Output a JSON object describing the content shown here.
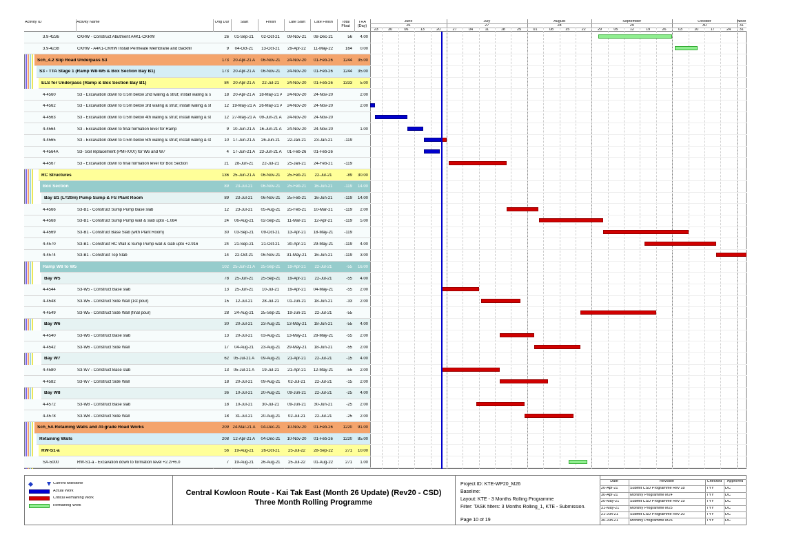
{
  "header": {
    "columns": [
      "Activity ID",
      "Activity Name",
      "Orig Dur",
      "Start",
      "Finish",
      "Late Start",
      "Late Finish",
      "Total Float",
      "TRA (Day)"
    ]
  },
  "timescale": {
    "months": [
      {
        "name": "June",
        "num": "26"
      },
      {
        "name": "July",
        "num": "27"
      },
      {
        "name": "August",
        "num": "28"
      },
      {
        "name": "September",
        "num": "29"
      },
      {
        "name": "October",
        "num": "30"
      },
      {
        "name": "Nove",
        "num": "31"
      }
    ],
    "weeks": [
      "23",
      "30",
      "06",
      "13",
      "20",
      "27",
      "04",
      "11",
      "18",
      "25",
      "01",
      "08",
      "15",
      "22",
      "29",
      "05",
      "12",
      "19",
      "26",
      "03",
      "10",
      "17",
      "24",
      "31"
    ]
  },
  "rows": [
    {
      "id": "3.9-4236",
      "name": "CKRW - Construct Abutment A4K1-CKRW",
      "dur": 26,
      "start": "01-Sep-21",
      "finish": "02-Oct-21",
      "late_start": "09-Nov-21",
      "late_finish": "08-Dec-21",
      "float": 56,
      "tra": "4.00"
    },
    {
      "id": "3.9-4238",
      "name": "CKRW - A4K1-CKRW Install Permeate Membrane and Backfill",
      "dur": 9,
      "start": "04-Oct-21",
      "finish": "13-Oct-21",
      "late_start": "29-Apr-22",
      "late_finish": "11-May-22",
      "float": 164,
      "tra": "0.00"
    },
    {
      "name": "Sch_4.2 Slip Road Underpass S3",
      "dur": 173,
      "start": "20-Apr-21 A",
      "finish": "06-Nov-21",
      "late_start": "24-Nov-20",
      "late_finish": "01-Feb-26",
      "float": 1244,
      "tra": "35.00"
    },
    {
      "name": "S3 - TTA Stage 1 (Ramp W8-W5 & Box Section Bay B1)",
      "dur": 173,
      "start": "20-Apr-21 A",
      "finish": "06-Nov-21",
      "late_start": "24-Nov-20",
      "late_finish": "01-Feb-26",
      "float": 1244,
      "tra": "35.00"
    },
    {
      "name": "ELS for Underpass (Ramp & Box Section Bay B1)",
      "dur": 84,
      "start": "20-Apr-21 A",
      "finish": "22-Jul-21",
      "late_start": "24-Nov-20",
      "late_finish": "01-Feb-26",
      "float": 1333,
      "tra": "5.00"
    },
    {
      "id": "4-4560",
      "name": "S3 - Excavation down to 0.5m below 2nd waling & strut; install waling & strut",
      "dur": 18,
      "start": "20-Apr-21 A",
      "finish": "18-May-21 A",
      "late_start": "24-Nov-20",
      "late_finish": "24-Nov-20",
      "tra": "2.00"
    },
    {
      "id": "4-4562",
      "name": "S3 - Excavation down to 0.5m below 3rd waling & strut; install waling & strut",
      "dur": 12,
      "start": "19-May-21 A",
      "finish": "26-May-21 A",
      "late_start": "24-Nov-20",
      "late_finish": "24-Nov-20",
      "tra": "2.00"
    },
    {
      "id": "4-4563",
      "name": "S3 - Excavation down to 0.5m below 4th waling & strut; install waling & strut",
      "dur": 12,
      "start": "27-May-21 A",
      "finish": "09-Jun-21 A",
      "late_start": "24-Nov-20",
      "late_finish": "24-Nov-20"
    },
    {
      "id": "4-4564",
      "name": "S3 - Excavation down to final formation level for Ramp",
      "dur": 9,
      "start": "10-Jun-21 A",
      "finish": "16-Jun-21 A",
      "late_start": "24-Nov-20",
      "late_finish": "24-Nov-20",
      "tra": "1.00"
    },
    {
      "id": "4-4565",
      "name": "S3 - Excavation down to 0.5m below 5th waling & strut; install waling & strut",
      "dur": 10,
      "start": "17-Jun-21 A",
      "finish": "26-Jun-21",
      "late_start": "22-Jan-21",
      "late_finish": "23-Jan-21",
      "float": -119
    },
    {
      "id": "4-4564A",
      "name": "S3- Soil replacement (PMI-XXX) for W6 and W7",
      "dur": 4,
      "start": "17-Jun-21 A",
      "finish": "23-Jun-21 A",
      "late_start": "01-Feb-26",
      "late_finish": "01-Feb-26"
    },
    {
      "id": "4-4567",
      "name": "S3 - Excavation down to final formation level for Box Section",
      "dur": 21,
      "start": "28-Jun-21",
      "finish": "22-Jul-21",
      "late_start": "25-Jan-21",
      "late_finish": "24-Feb-21",
      "float": -119
    },
    {
      "name": "RC Structures",
      "dur": 136,
      "start": "25-Jun-21 A",
      "finish": "06-Nov-21",
      "late_start": "25-Feb-21",
      "late_finish": "22-Jul-21",
      "float": -89,
      "tra": "30.00"
    },
    {
      "name": "Box Section",
      "dur": 89,
      "start": "23-Jul-21",
      "finish": "06-Nov-21",
      "late_start": "25-Feb-21",
      "late_finish": "16-Jun-21",
      "float": -119,
      "tra": "14.00"
    },
    {
      "name": "Bay B1 (L=20m) Pump Sump & FS Plant Room",
      "dur": 89,
      "start": "23-Jul-21",
      "finish": "06-Nov-21",
      "late_start": "25-Feb-21",
      "late_finish": "16-Jun-21",
      "float": -119,
      "tra": "14.00"
    },
    {
      "id": "4-4566",
      "name": "S3-B1 - Construct Sump Pump Base slab",
      "dur": 12,
      "start": "23-Jul-21",
      "finish": "05-Aug-21",
      "late_start": "25-Feb-21",
      "late_finish": "10-Mar-21",
      "float": -119,
      "tra": "2.00"
    },
    {
      "id": "4-4568",
      "name": "S3-B1 - Construct Sump Pump wall & slab upto -1.084",
      "dur": 24,
      "start": "06-Aug-21",
      "finish": "02-Sep-21",
      "late_start": "11-Mar-21",
      "late_finish": "12-Apr-21",
      "float": -119,
      "tra": "5.00"
    },
    {
      "id": "4-4569",
      "name": "S3-B1 - Construct Base Slab (with Plant Room)",
      "dur": 30,
      "start": "03-Sep-21",
      "finish": "09-Oct-21",
      "late_start": "13-Apr-21",
      "late_finish": "18-May-21",
      "float": -119
    },
    {
      "id": "4-4570",
      "name": "S3-B1 - Construct RC Wall & Sump Pump wall & slab upto +2.916",
      "dur": 24,
      "start": "21-Sep-21",
      "finish": "21-Oct-21",
      "late_start": "30-Apr-21",
      "late_finish": "29-May-21",
      "float": -119,
      "tra": "4.00"
    },
    {
      "id": "4-4574",
      "name": "S3-B1 - Construct Top Slab",
      "dur": 14,
      "start": "22-Oct-21",
      "finish": "06-Nov-21",
      "late_start": "31-May-21",
      "late_finish": "16-Jun-21",
      "float": -119,
      "tra": "3.00"
    },
    {
      "name": "Ramp W8 to W5",
      "dur": 102,
      "start": "25-Jun-21 A",
      "finish": "25-Sep-21",
      "late_start": "19-Apr-21",
      "late_finish": "22-Jul-21",
      "float": -55,
      "tra": "16.00"
    },
    {
      "name": "Bay W5",
      "dur": 78,
      "start": "25-Jun-21",
      "finish": "25-Sep-21",
      "late_start": "19-Apr-21",
      "late_finish": "22-Jul-21",
      "float": -55,
      "tra": "4.00"
    },
    {
      "id": "4-4544",
      "name": "S3-W5 - Construct Base slab",
      "dur": 13,
      "start": "25-Jun-21",
      "finish": "10-Jul-21",
      "late_start": "19-Apr-21",
      "late_finish": "04-May-21",
      "float": -55,
      "tra": "2.00"
    },
    {
      "id": "4-4548",
      "name": "S3-W5 - Construct Side Wall (1st pour)",
      "dur": 15,
      "start": "12-Jul-21",
      "finish": "28-Jul-21",
      "late_start": "01-Jun-21",
      "late_finish": "18-Jun-21",
      "float": -33,
      "tra": "2.00"
    },
    {
      "id": "4-4549",
      "name": "S3-W5 - Construct Side Wall (final pour)",
      "dur": 28,
      "start": "24-Aug-21",
      "finish": "25-Sep-21",
      "late_start": "19-Jun-21",
      "late_finish": "22-Jul-21",
      "float": -55
    },
    {
      "name": "Bay W6",
      "dur": 30,
      "start": "20-Jul-21",
      "finish": "23-Aug-21",
      "late_start": "13-May-21",
      "late_finish": "18-Jun-21",
      "float": -55,
      "tra": "4.00"
    },
    {
      "id": "4-4540",
      "name": "S3-W6 - Construct Base slab",
      "dur": 13,
      "start": "20-Jul-21",
      "finish": "03-Aug-21",
      "late_start": "13-May-21",
      "late_finish": "28-May-21",
      "float": -55,
      "tra": "2.00"
    },
    {
      "id": "4-4542",
      "name": "S3-W6 - Construct Side Wall",
      "dur": 17,
      "start": "04-Aug-21",
      "finish": "23-Aug-21",
      "late_start": "29-May-21",
      "late_finish": "18-Jun-21",
      "float": -55,
      "tra": "2.00"
    },
    {
      "name": "Bay W7",
      "dur": 62,
      "start": "05-Jul-21 A",
      "finish": "09-Aug-21",
      "late_start": "21-Apr-21",
      "late_finish": "22-Jul-21",
      "float": -15,
      "tra": "4.00"
    },
    {
      "id": "4-4580",
      "name": "S3-W7 - Construct Base slab",
      "dur": 13,
      "start": "05-Jul-21 A",
      "finish": "19-Jul-21",
      "late_start": "21-Apr-21",
      "late_finish": "12-May-21",
      "float": -55,
      "tra": "2.00"
    },
    {
      "id": "4-4582",
      "name": "S3-W7 - Construct Side Wall",
      "dur": 18,
      "start": "20-Jul-21",
      "finish": "09-Aug-21",
      "late_start": "02-Jul-21",
      "late_finish": "22-Jul-21",
      "float": -15,
      "tra": "2.00"
    },
    {
      "name": "Bay W8",
      "dur": 36,
      "start": "10-Jul-21",
      "finish": "20-Aug-21",
      "late_start": "09-Jun-21",
      "late_finish": "22-Jul-21",
      "float": -25,
      "tra": "4.00"
    },
    {
      "id": "4-4572",
      "name": "S3-W8 - Construct Base slab",
      "dur": 18,
      "start": "10-Jul-21",
      "finish": "30-Jul-21",
      "late_start": "09-Jun-21",
      "late_finish": "30-Jun-21",
      "float": -25,
      "tra": "2.00"
    },
    {
      "id": "4-4578",
      "name": "S3-W8 - Construct Side Wall",
      "dur": 18,
      "start": "31-Jul-21",
      "finish": "20-Aug-21",
      "late_start": "02-Jul-21",
      "late_finish": "22-Jul-21",
      "float": -25,
      "tra": "2.00"
    },
    {
      "name": "Sch_5A Retaining Walls and At-grade Road Works",
      "dur": 209,
      "start": "24-Mar-21 A",
      "finish": "04-Dec-21",
      "late_start": "10-Nov-20",
      "late_finish": "01-Feb-26",
      "float": 1220,
      "tra": "91.00"
    },
    {
      "name": "Retaining Walls",
      "dur": 208,
      "start": "12-Apr-21 A",
      "finish": "04-Dec-21",
      "late_start": "10-Nov-20",
      "late_finish": "01-Feb-26",
      "float": 1220,
      "tra": "85.00"
    },
    {
      "name": "RW-S1-a",
      "dur": 56,
      "start": "19-Aug-21",
      "finish": "26-Oct-21",
      "late_start": "25-Jul-22",
      "late_finish": "28-Sep-22",
      "float": 271,
      "tra": "10.00"
    },
    {
      "id": "SA-5000",
      "name": "RW-S1-a - Excavation down to formation level +2.2/+6.0",
      "dur": 7,
      "start": "19-Aug-21",
      "finish": "26-Aug-21",
      "late_start": "25-Jul-22",
      "late_finish": "01-Aug-22",
      "float": 271,
      "tra": "1.00"
    }
  ],
  "legend": [
    "Current Milestone",
    "Actual Work",
    "Critical Remaining Work",
    "Remaining Work"
  ],
  "title": [
    "Central Kowloon Route - Kai Tak East (Month 26 Update) (Rev20 - CSD)",
    "Three Month Rolling Programme"
  ],
  "project_info": [
    "Project ID: KTE-WP20_M26",
    "Baseline:",
    "Layout: KTE - 3 Months Rolling Programme",
    "Filter: TASK filters: 3 Months Rolling_1, KTE - Submission.",
    "Page 10 of 19"
  ],
  "revisions": {
    "columns": [
      "Date",
      "Revision",
      "Checked",
      "Approved"
    ],
    "rows": [
      [
        "20-Apr-21",
        "Submit CSD Programme Rev 18",
        "TYY",
        "DC"
      ],
      [
        "30-Apr-21",
        "Monthly Programme M24",
        "TYY",
        "DC"
      ],
      [
        "20-May-21",
        "Submit CSD Programme Rev 19",
        "TYY",
        "DC"
      ],
      [
        "31-May-21",
        "Monthly Programme M25",
        "TYY",
        "DC"
      ],
      [
        "21-Jun-21",
        "Submit CSD Programme Rev 20",
        "TYY",
        "DC"
      ],
      [
        "30-Jun-21",
        "Monthly Programme M26",
        "TYY",
        "DC"
      ]
    ]
  }
}
